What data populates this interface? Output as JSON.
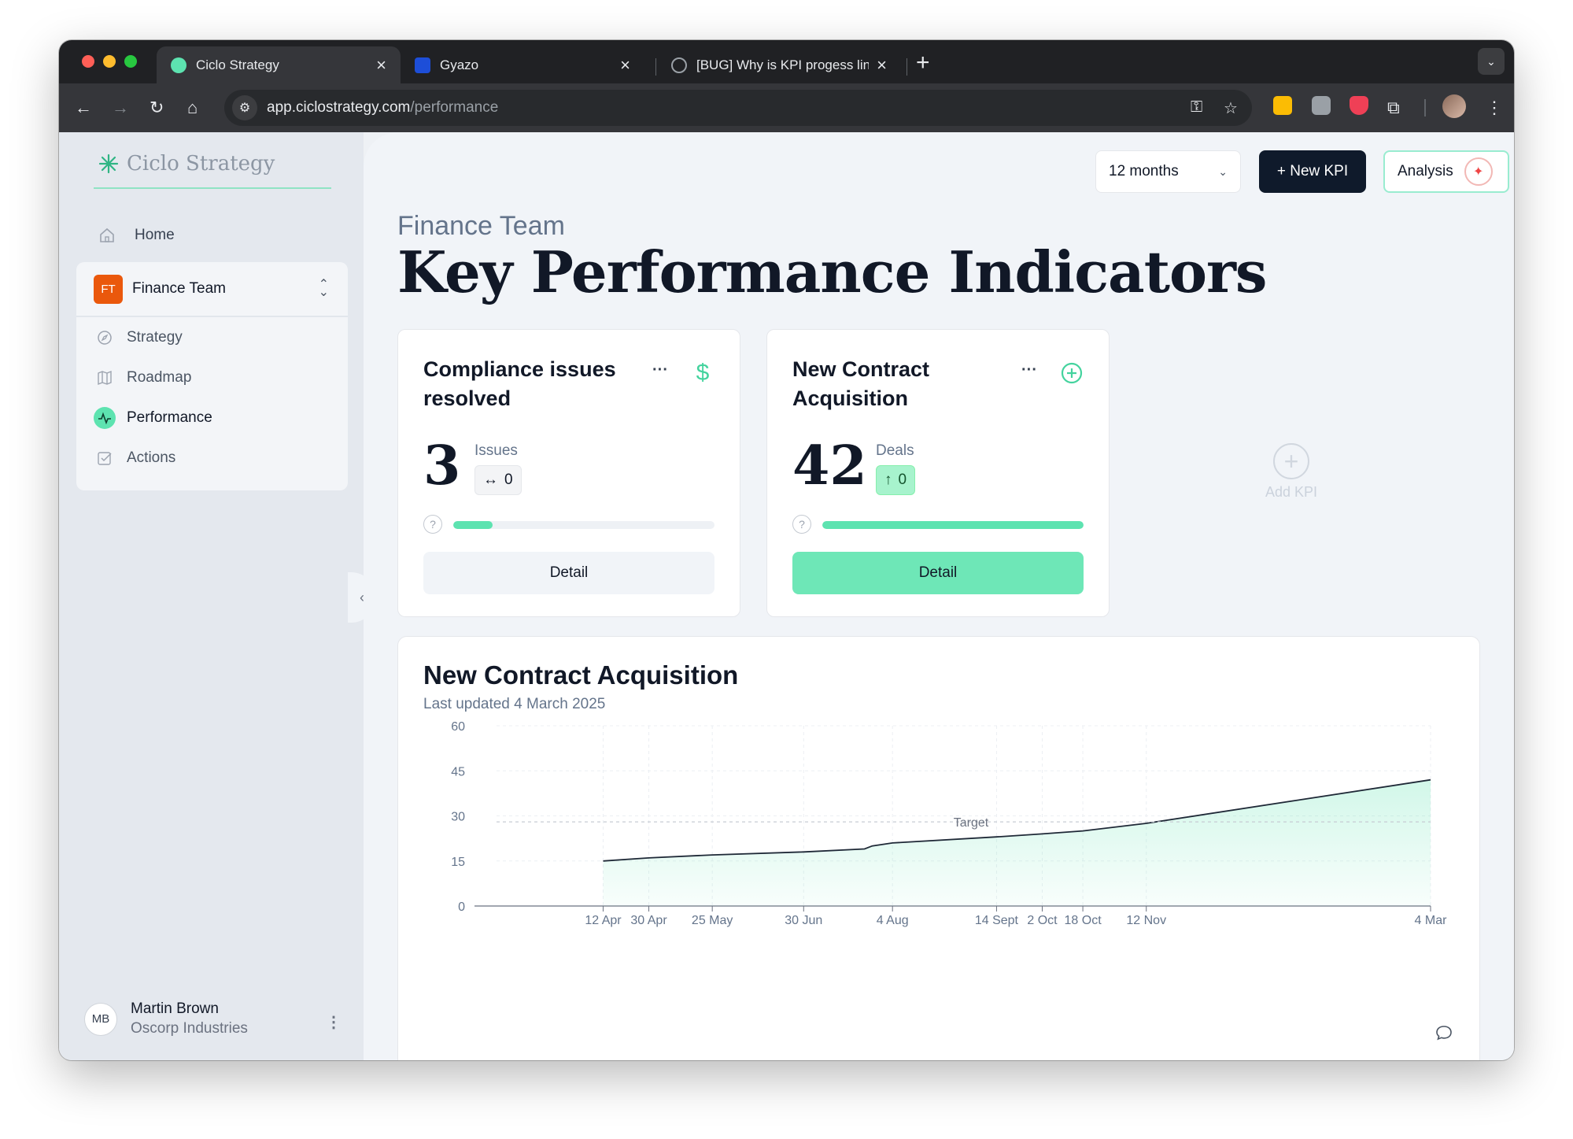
{
  "browser": {
    "tabs": [
      {
        "label": "Ciclo Strategy",
        "active": true
      },
      {
        "label": "Gyazo",
        "active": false
      },
      {
        "label": "[BUG] Why is KPI progess line",
        "active": false
      }
    ],
    "url_host": "app.ciclostrategy.com",
    "url_path": "/performance"
  },
  "sidebar": {
    "logo": "Ciclo Strategy",
    "home": "Home",
    "team": {
      "initials": "FT",
      "name": "Finance Team"
    },
    "items": [
      {
        "label": "Strategy",
        "icon": "compass-icon"
      },
      {
        "label": "Roadmap",
        "icon": "map-icon"
      },
      {
        "label": "Performance",
        "icon": "pulse-icon",
        "active": true
      },
      {
        "label": "Actions",
        "icon": "checkbox-icon"
      }
    ],
    "user": {
      "initials": "MB",
      "name": "Martin Brown",
      "org": "Oscorp Industries"
    }
  },
  "header": {
    "period": "12 months",
    "new_kpi": "+ New KPI",
    "analysis": "Analysis",
    "subtitle": "Finance Team",
    "title": "Key Performance Indicators"
  },
  "kpis": [
    {
      "title": "Compliance issues resolved",
      "value": "3",
      "unit": "Issues",
      "delta": "0",
      "trend": "flat",
      "progress": 0.15,
      "detail": "Detail",
      "icon": "dollar-icon"
    },
    {
      "title": "New Contract Acquisition",
      "value": "42",
      "unit": "Deals",
      "delta": "0",
      "trend": "up",
      "progress": 1.0,
      "detail": "Detail",
      "icon": "plus-circle-icon"
    }
  ],
  "add_kpi": "Add KPI",
  "chart_card": {
    "title": "New Contract Acquisition",
    "updated": "Last updated 4 March 2025"
  },
  "chart_data": {
    "type": "area",
    "x_ticks": [
      "12 Apr",
      "30 Apr",
      "25 May",
      "30 Jun",
      "4 Aug",
      "14 Sept",
      "2 Oct",
      "18 Oct",
      "12 Nov",
      "4 Mar"
    ],
    "y_ticks": [
      0,
      15,
      30,
      45,
      60
    ],
    "ylim": [
      0,
      60
    ],
    "x": [
      "2024-04-12",
      "2024-04-30",
      "2024-05-25",
      "2024-06-30",
      "2024-07-24",
      "2024-07-27",
      "2024-08-04",
      "2024-09-14",
      "2024-10-02",
      "2024-10-18",
      "2024-11-12",
      "2025-03-04"
    ],
    "values": [
      15,
      16,
      17,
      18,
      19,
      20,
      21,
      23,
      24,
      25,
      27.5,
      42
    ],
    "target": {
      "label": "Target",
      "value": 28
    },
    "grid": true,
    "color": "#5de3b0"
  }
}
